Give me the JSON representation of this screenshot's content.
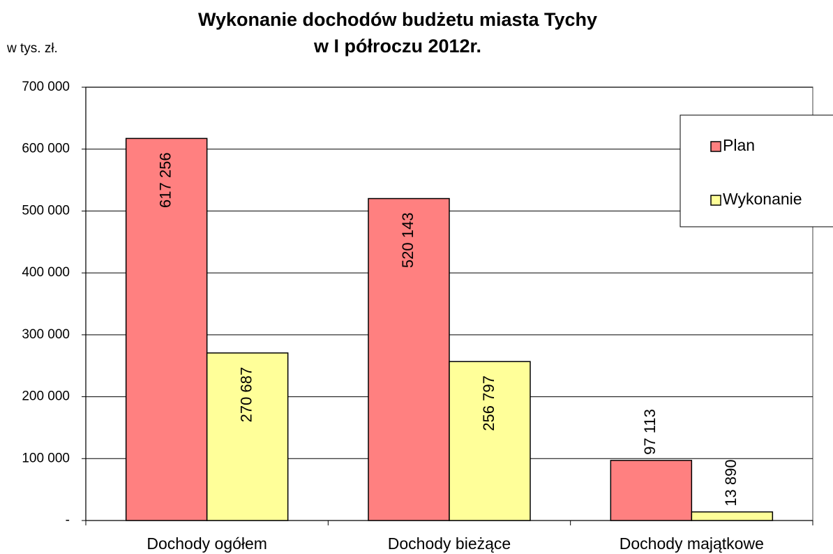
{
  "chart_data": {
    "type": "bar",
    "title": "Wykonanie dochodów budżetu miasta Tychy",
    "subtitle": "w  I półroczu 2012r.",
    "y_label": "w tys. zł.",
    "categories": [
      "Dochody ogółem",
      "Dochody bieżące",
      "Dochody majątkowe"
    ],
    "series": [
      {
        "name": "Plan",
        "color": "#ff8080",
        "values": [
          617256,
          520143,
          97113
        ],
        "value_labels": [
          "617 256",
          "520 143",
          "97 113"
        ]
      },
      {
        "name": "Wykonanie",
        "color": "#ffff99",
        "values": [
          270687,
          256797,
          13890
        ],
        "value_labels": [
          "270 687",
          "256 797",
          "13 890"
        ]
      }
    ],
    "ylim": [
      0,
      700000
    ],
    "yticks": [
      {
        "value": 0,
        "label": "-"
      },
      {
        "value": 100000,
        "label": "100 000"
      },
      {
        "value": 200000,
        "label": "200 000"
      },
      {
        "value": 300000,
        "label": "300 000"
      },
      {
        "value": 400000,
        "label": "400 000"
      },
      {
        "value": 500000,
        "label": "500 000"
      },
      {
        "value": 600000,
        "label": "600 000"
      },
      {
        "value": 700000,
        "label": "700 000"
      }
    ],
    "grid": true,
    "legend": "right"
  }
}
